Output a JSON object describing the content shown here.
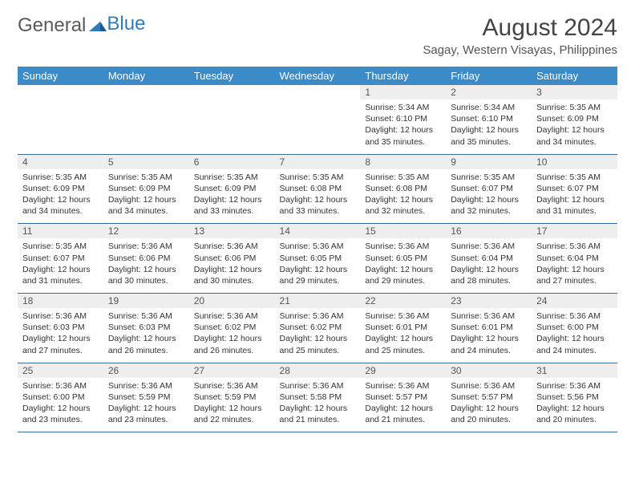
{
  "logo": {
    "text1": "General",
    "text2": "Blue"
  },
  "title": "August 2024",
  "location": "Sagay, Western Visayas, Philippines",
  "colors": {
    "header_bg": "#3b8bc8",
    "header_text": "#ffffff",
    "daynum_bg": "#eeeeee",
    "row_border": "#3b6b9a",
    "logo_gray": "#5a5a5a",
    "logo_blue": "#2f7bbf"
  },
  "typography": {
    "title_fontsize": 30,
    "location_fontsize": 15,
    "dayheader_fontsize": 13,
    "body_fontsize": 10.5
  },
  "day_headers": [
    "Sunday",
    "Monday",
    "Tuesday",
    "Wednesday",
    "Thursday",
    "Friday",
    "Saturday"
  ],
  "weeks": [
    [
      null,
      null,
      null,
      null,
      {
        "n": "1",
        "sunrise": "5:34 AM",
        "sunset": "6:10 PM",
        "daylight": "12 hours and 35 minutes."
      },
      {
        "n": "2",
        "sunrise": "5:34 AM",
        "sunset": "6:10 PM",
        "daylight": "12 hours and 35 minutes."
      },
      {
        "n": "3",
        "sunrise": "5:35 AM",
        "sunset": "6:09 PM",
        "daylight": "12 hours and 34 minutes."
      }
    ],
    [
      {
        "n": "4",
        "sunrise": "5:35 AM",
        "sunset": "6:09 PM",
        "daylight": "12 hours and 34 minutes."
      },
      {
        "n": "5",
        "sunrise": "5:35 AM",
        "sunset": "6:09 PM",
        "daylight": "12 hours and 34 minutes."
      },
      {
        "n": "6",
        "sunrise": "5:35 AM",
        "sunset": "6:09 PM",
        "daylight": "12 hours and 33 minutes."
      },
      {
        "n": "7",
        "sunrise": "5:35 AM",
        "sunset": "6:08 PM",
        "daylight": "12 hours and 33 minutes."
      },
      {
        "n": "8",
        "sunrise": "5:35 AM",
        "sunset": "6:08 PM",
        "daylight": "12 hours and 32 minutes."
      },
      {
        "n": "9",
        "sunrise": "5:35 AM",
        "sunset": "6:07 PM",
        "daylight": "12 hours and 32 minutes."
      },
      {
        "n": "10",
        "sunrise": "5:35 AM",
        "sunset": "6:07 PM",
        "daylight": "12 hours and 31 minutes."
      }
    ],
    [
      {
        "n": "11",
        "sunrise": "5:35 AM",
        "sunset": "6:07 PM",
        "daylight": "12 hours and 31 minutes."
      },
      {
        "n": "12",
        "sunrise": "5:36 AM",
        "sunset": "6:06 PM",
        "daylight": "12 hours and 30 minutes."
      },
      {
        "n": "13",
        "sunrise": "5:36 AM",
        "sunset": "6:06 PM",
        "daylight": "12 hours and 30 minutes."
      },
      {
        "n": "14",
        "sunrise": "5:36 AM",
        "sunset": "6:05 PM",
        "daylight": "12 hours and 29 minutes."
      },
      {
        "n": "15",
        "sunrise": "5:36 AM",
        "sunset": "6:05 PM",
        "daylight": "12 hours and 29 minutes."
      },
      {
        "n": "16",
        "sunrise": "5:36 AM",
        "sunset": "6:04 PM",
        "daylight": "12 hours and 28 minutes."
      },
      {
        "n": "17",
        "sunrise": "5:36 AM",
        "sunset": "6:04 PM",
        "daylight": "12 hours and 27 minutes."
      }
    ],
    [
      {
        "n": "18",
        "sunrise": "5:36 AM",
        "sunset": "6:03 PM",
        "daylight": "12 hours and 27 minutes."
      },
      {
        "n": "19",
        "sunrise": "5:36 AM",
        "sunset": "6:03 PM",
        "daylight": "12 hours and 26 minutes."
      },
      {
        "n": "20",
        "sunrise": "5:36 AM",
        "sunset": "6:02 PM",
        "daylight": "12 hours and 26 minutes."
      },
      {
        "n": "21",
        "sunrise": "5:36 AM",
        "sunset": "6:02 PM",
        "daylight": "12 hours and 25 minutes."
      },
      {
        "n": "22",
        "sunrise": "5:36 AM",
        "sunset": "6:01 PM",
        "daylight": "12 hours and 25 minutes."
      },
      {
        "n": "23",
        "sunrise": "5:36 AM",
        "sunset": "6:01 PM",
        "daylight": "12 hours and 24 minutes."
      },
      {
        "n": "24",
        "sunrise": "5:36 AM",
        "sunset": "6:00 PM",
        "daylight": "12 hours and 24 minutes."
      }
    ],
    [
      {
        "n": "25",
        "sunrise": "5:36 AM",
        "sunset": "6:00 PM",
        "daylight": "12 hours and 23 minutes."
      },
      {
        "n": "26",
        "sunrise": "5:36 AM",
        "sunset": "5:59 PM",
        "daylight": "12 hours and 23 minutes."
      },
      {
        "n": "27",
        "sunrise": "5:36 AM",
        "sunset": "5:59 PM",
        "daylight": "12 hours and 22 minutes."
      },
      {
        "n": "28",
        "sunrise": "5:36 AM",
        "sunset": "5:58 PM",
        "daylight": "12 hours and 21 minutes."
      },
      {
        "n": "29",
        "sunrise": "5:36 AM",
        "sunset": "5:57 PM",
        "daylight": "12 hours and 21 minutes."
      },
      {
        "n": "30",
        "sunrise": "5:36 AM",
        "sunset": "5:57 PM",
        "daylight": "12 hours and 20 minutes."
      },
      {
        "n": "31",
        "sunrise": "5:36 AM",
        "sunset": "5:56 PM",
        "daylight": "12 hours and 20 minutes."
      }
    ]
  ],
  "labels": {
    "sunrise": "Sunrise: ",
    "sunset": "Sunset: ",
    "daylight": "Daylight: "
  }
}
